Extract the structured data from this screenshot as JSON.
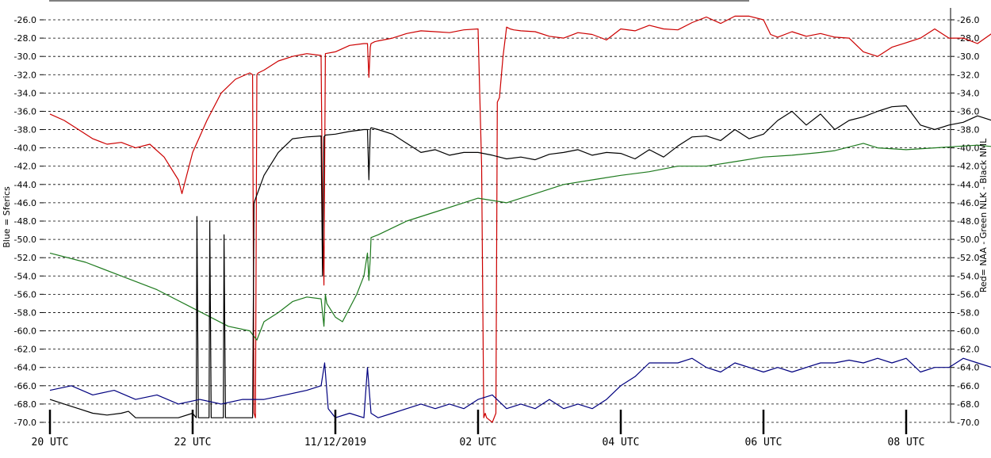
{
  "chart_data": {
    "type": "line",
    "left_axis_label": "Blue = Sferics",
    "right_axis_label": "Red= NAA - Green NLK - Black NML",
    "y_ticks": [
      "-26.0",
      "-28.0",
      "-30.0",
      "-32.0",
      "-34.0",
      "-36.0",
      "-38.0",
      "-40.0",
      "-42.0",
      "-44.0",
      "-46.0",
      "-48.0",
      "-50.0",
      "-52.0",
      "-54.0",
      "-56.0",
      "-58.0",
      "-60.0",
      "-62.0",
      "-64.0",
      "-66.0",
      "-68.0",
      "-70.0"
    ],
    "ylim": [
      -70,
      -25
    ],
    "grid": "horizontal dashed",
    "x_ticks": [
      {
        "label": "20 UTC",
        "hours": 0
      },
      {
        "label": "22 UTC",
        "hours": 2
      },
      {
        "label": "11/12/2019",
        "hours": 4
      },
      {
        "label": "02 UTC",
        "hours": 6
      },
      {
        "label": "04 UTC",
        "hours": 8
      },
      {
        "label": "06 UTC",
        "hours": 10
      },
      {
        "label": "08 UTC",
        "hours": 12
      }
    ],
    "xlim_hours": [
      0,
      13.5
    ],
    "series": [
      {
        "name": "NAA",
        "color": "#cc0000",
        "hours": [
          0,
          0.2,
          0.4,
          0.6,
          0.8,
          1.0,
          1.2,
          1.4,
          1.6,
          1.8,
          1.85,
          2.0,
          2.2,
          2.4,
          2.6,
          2.8,
          2.84,
          2.86,
          2.88,
          2.9,
          2.92,
          3.0,
          3.2,
          3.4,
          3.6,
          3.8,
          3.82,
          3.84,
          3.86,
          4.0,
          4.2,
          4.4,
          4.45,
          4.47,
          4.49,
          4.5,
          4.55,
          4.6,
          4.8,
          5.0,
          5.2,
          5.4,
          5.6,
          5.8,
          6.0,
          6.05,
          6.08,
          6.1,
          6.12,
          6.2,
          6.25,
          6.27,
          6.3,
          6.35,
          6.4,
          6.45,
          6.5,
          6.6,
          6.8,
          7.0,
          7.2,
          7.4,
          7.6,
          7.8,
          8.0,
          8.2,
          8.4,
          8.6,
          8.8,
          9.0,
          9.2,
          9.4,
          9.6,
          9.8,
          10.0,
          10.1,
          10.2,
          10.4,
          10.6,
          10.8,
          11.0,
          11.2,
          11.4,
          11.6,
          11.8,
          12.0,
          12.2,
          12.4,
          12.6,
          12.8,
          13.0,
          13.2,
          13.4
        ],
        "values": [
          -36.3,
          -37.0,
          -38.0,
          -39.0,
          -39.6,
          -39.4,
          -40.0,
          -39.6,
          -41.0,
          -43.5,
          -45.0,
          -40.5,
          -37.0,
          -34.0,
          -32.5,
          -31.8,
          -32.0,
          -69.0,
          -69.5,
          -32.0,
          -31.8,
          -31.5,
          -30.5,
          -30.0,
          -29.7,
          -29.9,
          -47.0,
          -55.0,
          -29.7,
          -29.5,
          -28.8,
          -28.6,
          -28.6,
          -32.3,
          -29.0,
          -28.6,
          -28.4,
          -28.3,
          -28.0,
          -27.5,
          -27.2,
          -27.3,
          -27.4,
          -27.1,
          -27.0,
          -42.0,
          -69.5,
          -69.0,
          -69.5,
          -70.0,
          -69.0,
          -35.0,
          -34.5,
          -30.0,
          -26.8,
          -27.0,
          -27.1,
          -27.2,
          -27.3,
          -27.8,
          -28.0,
          -27.4,
          -27.6,
          -28.2,
          -27.0,
          -27.2,
          -26.6,
          -27.0,
          -27.1,
          -26.3,
          -25.7,
          -26.4,
          -25.6,
          -25.6,
          -26.0,
          -27.6,
          -27.9,
          -27.3,
          -27.8,
          -27.5,
          -27.9,
          -28.0,
          -29.5,
          -30.0,
          -29.0,
          -28.5,
          -28.0,
          -27.0,
          -28.0,
          -28.0,
          -28.6,
          -27.5,
          -27.9
        ]
      },
      {
        "name": "NLK",
        "color": "#1e7a1e",
        "hours": [
          0,
          0.5,
          1.0,
          1.5,
          2.0,
          2.5,
          2.8,
          2.9,
          3.0,
          3.2,
          3.4,
          3.6,
          3.8,
          3.84,
          3.86,
          3.88,
          4.0,
          4.1,
          4.3,
          4.4,
          4.45,
          4.47,
          4.49,
          4.5,
          4.6,
          5.0,
          5.4,
          5.8,
          6.0,
          6.4,
          6.8,
          7.2,
          7.6,
          8.0,
          8.4,
          8.8,
          9.2,
          9.6,
          10.0,
          10.4,
          10.8,
          11.0,
          11.4,
          11.6,
          12.0,
          12.4,
          12.8,
          13.0,
          13.4
        ],
        "values": [
          -51.5,
          -52.5,
          -54.0,
          -55.5,
          -57.5,
          -59.5,
          -60.0,
          -61.0,
          -59.0,
          -58.0,
          -56.8,
          -56.3,
          -56.5,
          -59.5,
          -56.0,
          -57.0,
          -58.5,
          -59.0,
          -56.0,
          -54.0,
          -51.5,
          -54.5,
          -52.0,
          -49.8,
          -49.5,
          -48.0,
          -47.0,
          -46.0,
          -45.5,
          -46.0,
          -45.0,
          -44.0,
          -43.5,
          -43.0,
          -42.6,
          -42.0,
          -42.0,
          -41.5,
          -41.0,
          -40.8,
          -40.5,
          -40.3,
          -39.5,
          -40.0,
          -40.2,
          -40.0,
          -39.8,
          -39.7,
          -40.0
        ]
      },
      {
        "name": "NML",
        "color": "#000000",
        "hours": [
          0,
          0.2,
          0.4,
          0.6,
          0.8,
          1.0,
          1.1,
          1.2,
          1.4,
          1.6,
          1.8,
          2.0,
          2.05,
          2.06,
          2.08,
          2.1,
          2.2,
          2.23,
          2.24,
          2.26,
          2.28,
          2.3,
          2.4,
          2.43,
          2.44,
          2.46,
          2.48,
          2.5,
          2.6,
          2.8,
          2.84,
          2.86,
          3.0,
          3.2,
          3.4,
          3.6,
          3.8,
          3.82,
          3.84,
          3.86,
          4.0,
          4.2,
          4.4,
          4.45,
          4.47,
          4.49,
          4.5,
          4.6,
          4.8,
          5.0,
          5.2,
          5.4,
          5.6,
          5.8,
          6.0,
          6.2,
          6.4,
          6.6,
          6.8,
          7.0,
          7.2,
          7.4,
          7.6,
          7.8,
          8.0,
          8.2,
          8.4,
          8.6,
          8.8,
          9.0,
          9.2,
          9.4,
          9.6,
          9.8,
          10.0,
          10.2,
          10.4,
          10.6,
          10.8,
          11.0,
          11.2,
          11.4,
          11.6,
          11.8,
          12.0,
          12.2,
          12.4,
          12.6,
          12.8,
          13.0,
          13.2,
          13.4
        ],
        "values": [
          -67.5,
          -68.0,
          -68.5,
          -69.0,
          -69.2,
          -69.0,
          -68.8,
          -69.5,
          -69.5,
          -69.5,
          -69.5,
          -69.0,
          -69.5,
          -47.5,
          -69.5,
          -69.5,
          -69.5,
          -69.5,
          -48.0,
          -69.5,
          -69.5,
          -69.5,
          -69.5,
          -69.5,
          -49.5,
          -69.5,
          -69.5,
          -69.5,
          -69.5,
          -69.5,
          -69.5,
          -46.0,
          -43.0,
          -40.5,
          -39.0,
          -38.8,
          -38.7,
          -54.0,
          -38.8,
          -38.6,
          -38.5,
          -38.2,
          -38.0,
          -38.0,
          -43.5,
          -38.0,
          -37.8,
          -38.0,
          -38.5,
          -39.5,
          -40.5,
          -40.2,
          -40.8,
          -40.5,
          -40.5,
          -40.8,
          -41.2,
          -41.0,
          -41.3,
          -40.7,
          -40.5,
          -40.2,
          -40.8,
          -40.5,
          -40.6,
          -41.2,
          -40.2,
          -41.0,
          -39.8,
          -38.8,
          -38.7,
          -39.2,
          -38.0,
          -39.0,
          -38.5,
          -37.0,
          -36.0,
          -37.5,
          -36.3,
          -38.0,
          -37.0,
          -36.6,
          -36.0,
          -35.5,
          -35.4,
          -37.5,
          -38.0,
          -37.5,
          -37.2,
          -36.5,
          -37.0,
          -36.8
        ]
      },
      {
        "name": "Sferics",
        "color": "#00007f",
        "hours": [
          0,
          0.3,
          0.6,
          0.9,
          1.2,
          1.5,
          1.8,
          2.1,
          2.4,
          2.7,
          3.0,
          3.3,
          3.6,
          3.8,
          3.85,
          3.9,
          4.0,
          4.2,
          4.4,
          4.45,
          4.5,
          4.6,
          4.8,
          5.0,
          5.2,
          5.4,
          5.6,
          5.8,
          6.0,
          6.2,
          6.4,
          6.6,
          6.8,
          7.0,
          7.2,
          7.4,
          7.6,
          7.8,
          8.0,
          8.2,
          8.4,
          8.6,
          8.8,
          9.0,
          9.2,
          9.4,
          9.6,
          9.8,
          10.0,
          10.2,
          10.4,
          10.6,
          10.8,
          11.0,
          11.2,
          11.4,
          11.6,
          11.8,
          12.0,
          12.2,
          12.4,
          12.6,
          12.8,
          13.0,
          13.2,
          13.4
        ],
        "values": [
          -66.5,
          -66.0,
          -67.0,
          -66.5,
          -67.5,
          -67.0,
          -68.0,
          -67.5,
          -68.0,
          -67.5,
          -67.5,
          -67.0,
          -66.5,
          -66.0,
          -63.5,
          -68.5,
          -69.5,
          -69.0,
          -69.5,
          -64.0,
          -69.0,
          -69.5,
          -69.0,
          -68.5,
          -68.0,
          -68.5,
          -68.0,
          -68.5,
          -67.5,
          -67.0,
          -68.5,
          -68.0,
          -68.5,
          -67.5,
          -68.5,
          -68.0,
          -68.5,
          -67.5,
          -66.0,
          -65.0,
          -63.5,
          -63.5,
          -63.5,
          -63.0,
          -64.0,
          -64.5,
          -63.5,
          -64.0,
          -64.5,
          -64.0,
          -64.5,
          -64.0,
          -63.5,
          -63.5,
          -63.2,
          -63.5,
          -63.0,
          -63.5,
          -63.0,
          -64.5,
          -64.0,
          -64.0,
          -63.0,
          -63.5,
          -64.0,
          -63.5
        ]
      }
    ]
  }
}
